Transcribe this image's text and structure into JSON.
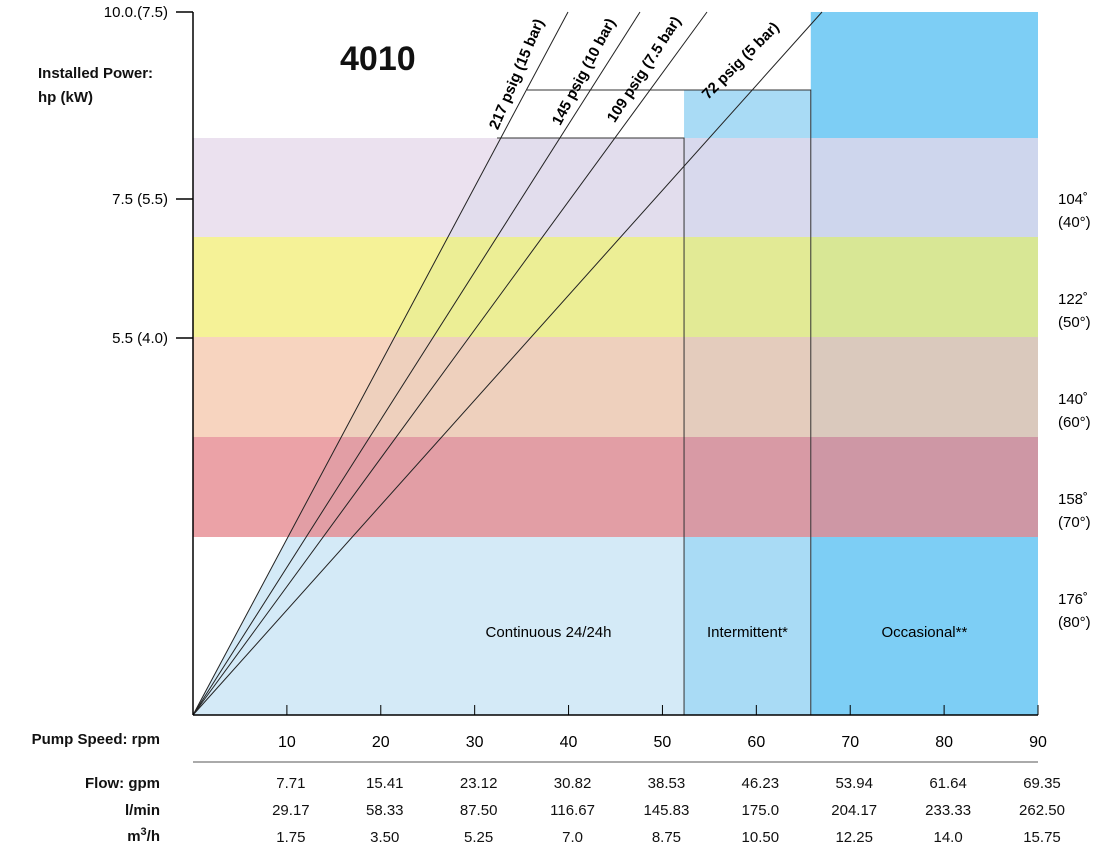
{
  "chart_data": {
    "type": "area",
    "title": "4010",
    "ylabel": "Installed Power:\nhp (kW)",
    "xlabel": "Pump Speed: rpm",
    "xlim": [
      0,
      90
    ],
    "x_ticks": [
      10,
      20,
      30,
      40,
      50,
      60,
      70,
      80,
      90
    ],
    "y_ticks": [
      {
        "label": "10.0.(7.5)",
        "value": 10.0
      },
      {
        "label": "7.5 (5.5)",
        "value": 7.5
      },
      {
        "label": "5.5 (4.0)",
        "value": 5.5
      }
    ],
    "temperature_bands": [
      {
        "label_f": "104˚",
        "label_c": "(40°)",
        "color": "#e6d9ea"
      },
      {
        "label_f": "122˚",
        "label_c": "(50°)",
        "color": "#f2ee7a"
      },
      {
        "label_f": "140˚",
        "label_c": "(60°)",
        "color": "#f5c8ad"
      },
      {
        "label_f": "158˚",
        "label_c": "(70°)",
        "color": "#e5888e"
      },
      {
        "label_f": "176˚",
        "label_c": "(80°)",
        "color": "#ffffff"
      }
    ],
    "duty_zones": [
      {
        "label": "Continuous 24/24h",
        "x_end": 52.3,
        "color": "#d4eaf7"
      },
      {
        "label": "Intermittent*",
        "x_end": 65.8,
        "color": "#a9dbf5"
      },
      {
        "label": "Occasional**",
        "x_end": 90,
        "color": "#7dcef5"
      }
    ],
    "pressure_lines": [
      {
        "label": "217 psig (15 bar)"
      },
      {
        "label": "145 psig (10 bar)"
      },
      {
        "label": "109 psig (7.5 bar)"
      },
      {
        "label": "72 psig (5 bar)"
      }
    ],
    "table": {
      "flow_gpm_label": "Flow: gpm",
      "flow_gpm": [
        "7.71",
        "15.41",
        "23.12",
        "30.82",
        "38.53",
        "46.23",
        "53.94",
        "61.64",
        "69.35"
      ],
      "lmin_label": "l/min",
      "lmin": [
        "29.17",
        "58.33",
        "87.50",
        "116.67",
        "145.83",
        "175.0",
        "204.17",
        "233.33",
        "262.50"
      ],
      "m3h_label": "m",
      "m3h_sup": "3",
      "m3h_suffix": "/h",
      "m3h": [
        "1.75",
        "3.50",
        "5.25",
        "7.0",
        "8.75",
        "10.50",
        "12.25",
        "14.0",
        "15.75"
      ]
    }
  }
}
